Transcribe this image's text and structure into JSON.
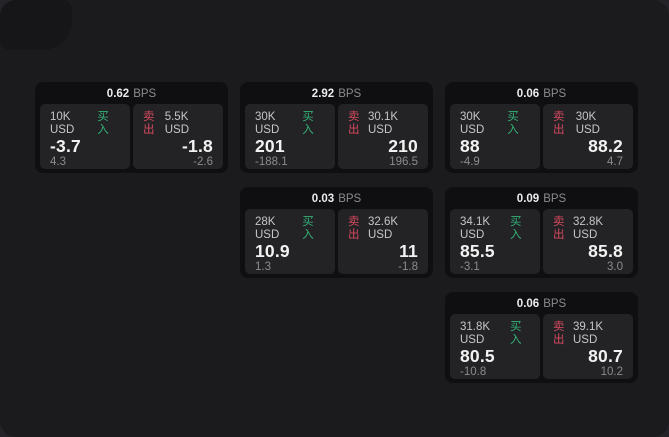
{
  "labels": {
    "bps": "BPS",
    "buy": "买入",
    "sell": "卖出"
  },
  "colors": {
    "buy_green": "#33b176",
    "sell_red": "#d6495f",
    "window_bg": "#1b1b1d",
    "card_bg": "#0f0f11",
    "panel_bg": "#232325"
  },
  "cards": [
    {
      "row": 0,
      "col": 0,
      "bps": "0.62",
      "buy": {
        "size": "10K USD",
        "price": "-3.7",
        "delta": "4.3"
      },
      "sell": {
        "size": "5.5K USD",
        "price": "-1.8",
        "delta": "-2.6"
      }
    },
    {
      "row": 0,
      "col": 1,
      "bps": "2.92",
      "buy": {
        "size": "30K USD",
        "price": "201",
        "delta": "-188.1"
      },
      "sell": {
        "size": "30.1K USD",
        "price": "210",
        "delta": "196.5"
      }
    },
    {
      "row": 0,
      "col": 2,
      "bps": "0.06",
      "buy": {
        "size": "30K USD",
        "price": "88",
        "delta": "-4.9"
      },
      "sell": {
        "size": "30K USD",
        "price": "88.2",
        "delta": "4.7"
      }
    },
    {
      "row": 1,
      "col": 1,
      "bps": "0.03",
      "buy": {
        "size": "28K USD",
        "price": "10.9",
        "delta": "1.3"
      },
      "sell": {
        "size": "32.6K USD",
        "price": "11",
        "delta": "-1.8"
      }
    },
    {
      "row": 1,
      "col": 2,
      "bps": "0.09",
      "buy": {
        "size": "34.1K USD",
        "price": "85.5",
        "delta": "-3.1"
      },
      "sell": {
        "size": "32.8K USD",
        "price": "85.8",
        "delta": "3.0"
      }
    },
    {
      "row": 2,
      "col": 2,
      "bps": "0.06",
      "buy": {
        "size": "31.8K USD",
        "price": "80.5",
        "delta": "-10.8"
      },
      "sell": {
        "size": "39.1K USD",
        "price": "80.7",
        "delta": "10.2"
      }
    }
  ]
}
